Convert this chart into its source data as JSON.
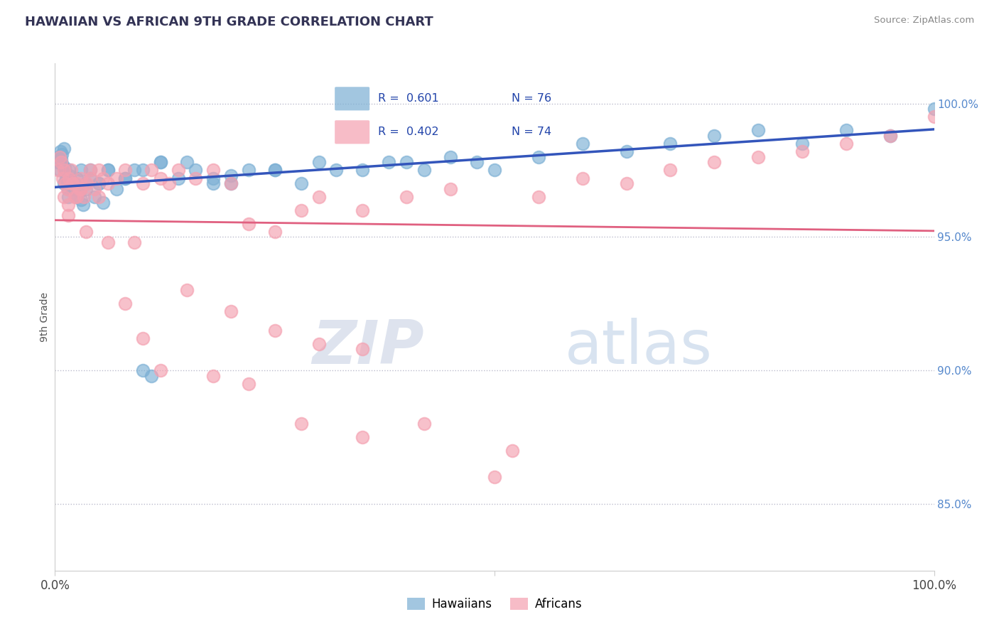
{
  "title": "HAWAIIAN VS AFRICAN 9TH GRADE CORRELATION CHART",
  "source": "Source: ZipAtlas.com",
  "ylabel": "9th Grade",
  "right_yticks": [
    85.0,
    90.0,
    95.0,
    100.0
  ],
  "right_ytick_labels": [
    "85.0%",
    "90.0%",
    "95.0%",
    "100.0%"
  ],
  "watermark_zip": "ZIP",
  "watermark_atlas": "atlas",
  "legend_label_blue": "Hawaiians",
  "legend_label_pink": "Africans",
  "blue_color": "#7BAFD4",
  "pink_color": "#F4A0B0",
  "blue_line_color": "#3355BB",
  "pink_line_color": "#E06080",
  "ylim_min": 82.5,
  "ylim_max": 101.5,
  "blue_x": [
    0.3,
    0.4,
    0.5,
    0.6,
    0.7,
    0.8,
    0.9,
    1.0,
    1.1,
    1.2,
    1.3,
    1.4,
    1.5,
    1.6,
    1.7,
    1.8,
    2.0,
    2.2,
    2.5,
    2.8,
    3.0,
    3.2,
    3.5,
    4.0,
    4.5,
    5.0,
    5.5,
    6.0,
    7.0,
    8.0,
    9.0,
    10.0,
    11.0,
    12.0,
    14.0,
    16.0,
    18.0,
    20.0,
    25.0,
    30.0,
    35.0,
    40.0,
    45.0,
    50.0,
    55.0,
    60.0,
    65.0,
    70.0,
    75.0,
    80.0,
    85.0,
    90.0,
    95.0,
    100.0,
    1.0,
    1.5,
    2.0,
    2.5,
    3.0,
    3.5,
    4.0,
    5.0,
    6.0,
    8.0,
    10.0,
    15.0,
    20.0,
    25.0,
    12.0,
    18.0,
    22.0,
    28.0,
    32.0,
    38.0,
    42.0,
    48.0
  ],
  "blue_y": [
    97.8,
    98.0,
    97.5,
    98.2,
    97.9,
    98.1,
    97.7,
    98.3,
    97.6,
    97.4,
    97.2,
    97.0,
    96.8,
    97.5,
    97.3,
    97.1,
    96.9,
    97.0,
    96.5,
    96.7,
    96.4,
    96.2,
    96.8,
    97.2,
    96.5,
    97.0,
    96.3,
    97.5,
    96.8,
    97.2,
    97.5,
    90.0,
    89.8,
    97.8,
    97.2,
    97.5,
    97.0,
    97.3,
    97.5,
    97.8,
    97.5,
    97.8,
    98.0,
    97.5,
    98.0,
    98.5,
    98.2,
    98.5,
    98.8,
    99.0,
    98.5,
    99.0,
    98.8,
    99.8,
    97.0,
    96.5,
    96.8,
    97.2,
    97.5,
    97.0,
    97.5,
    97.0,
    97.5,
    97.2,
    97.5,
    97.8,
    97.0,
    97.5,
    97.8,
    97.2,
    97.5,
    97.0,
    97.5,
    97.8,
    97.5,
    97.8
  ],
  "pink_x": [
    0.3,
    0.5,
    0.7,
    0.9,
    1.0,
    1.2,
    1.4,
    1.6,
    1.8,
    2.0,
    2.2,
    2.5,
    2.8,
    3.0,
    3.3,
    3.6,
    4.0,
    4.5,
    5.0,
    5.5,
    6.0,
    7.0,
    8.0,
    9.0,
    10.0,
    11.0,
    12.0,
    13.0,
    14.0,
    16.0,
    18.0,
    20.0,
    22.0,
    25.0,
    28.0,
    30.0,
    35.0,
    40.0,
    45.0,
    50.0,
    55.0,
    60.0,
    65.0,
    70.0,
    75.0,
    80.0,
    85.0,
    90.0,
    95.0,
    100.0,
    1.0,
    1.5,
    2.0,
    3.0,
    4.0,
    5.0,
    1.5,
    2.5,
    3.5,
    6.0,
    8.0,
    15.0,
    20.0,
    25.0,
    30.0,
    35.0,
    10.0,
    12.0,
    18.0,
    22.0,
    28.0,
    35.0,
    42.0,
    52.0
  ],
  "pink_y": [
    97.5,
    98.0,
    97.8,
    97.2,
    97.5,
    97.0,
    96.8,
    97.2,
    97.5,
    97.0,
    96.5,
    97.0,
    96.8,
    97.2,
    96.5,
    97.0,
    97.5,
    96.8,
    96.5,
    97.2,
    97.0,
    97.2,
    97.5,
    94.8,
    97.0,
    97.5,
    97.2,
    97.0,
    97.5,
    97.2,
    97.5,
    97.0,
    95.5,
    95.2,
    96.0,
    96.5,
    96.0,
    96.5,
    96.8,
    86.0,
    96.5,
    97.2,
    97.0,
    97.5,
    97.8,
    98.0,
    98.2,
    98.5,
    98.8,
    99.5,
    96.5,
    96.2,
    97.0,
    96.8,
    97.2,
    97.5,
    95.8,
    96.5,
    95.2,
    94.8,
    92.5,
    93.0,
    92.2,
    91.5,
    91.0,
    90.8,
    91.2,
    90.0,
    89.8,
    89.5,
    88.0,
    87.5,
    88.0,
    87.0
  ]
}
